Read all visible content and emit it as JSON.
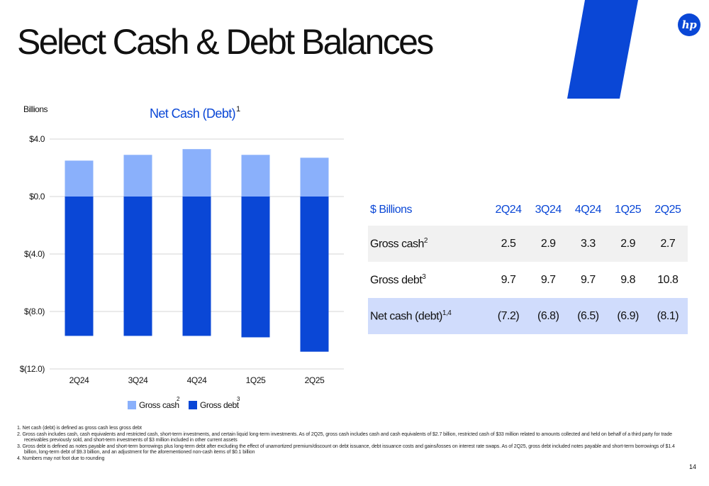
{
  "page": {
    "title": "Select Cash & Debt Balances",
    "logo_text": "hp",
    "page_number": "14",
    "colors": {
      "accent": "#0a47d6",
      "light_blue": "#8ab0fb",
      "dark_blue": "#0a47d6",
      "net_row_bg": "#d0dcfc"
    }
  },
  "chart_data": {
    "type": "bar",
    "title": "Net Cash (Debt)",
    "title_sup": "1",
    "ylabel": "Billions",
    "categories": [
      "2Q24",
      "3Q24",
      "4Q24",
      "1Q25",
      "2Q25"
    ],
    "series": [
      {
        "name": "Gross cash",
        "sup": "2",
        "values": [
          2.5,
          2.9,
          3.3,
          2.9,
          2.7
        ],
        "color": "#8ab0fb"
      },
      {
        "name": "Gross debt",
        "sup": "3",
        "values": [
          -9.7,
          -9.7,
          -9.7,
          -9.8,
          -10.8
        ],
        "color": "#0a47d6"
      }
    ],
    "ylim": [
      -12,
      4
    ],
    "yticks": [
      4,
      0,
      -4,
      -8,
      -12
    ],
    "ytick_labels": [
      "$4.0",
      "$0.0",
      "$(4.0)",
      "$(8.0)",
      "$(12.0)"
    ],
    "stacked": true,
    "grid": true,
    "legend_position": "bottom"
  },
  "table": {
    "headers": [
      "$ Billions",
      "2Q24",
      "3Q24",
      "4Q24",
      "1Q25",
      "2Q25"
    ],
    "rows": [
      {
        "label": "Gross cash",
        "sup": "2",
        "values": [
          "2.5",
          "2.9",
          "3.3",
          "2.9",
          "2.7"
        ]
      },
      {
        "label": "Gross debt",
        "sup": "3",
        "values": [
          "9.7",
          "9.7",
          "9.7",
          "9.8",
          "10.8"
        ]
      },
      {
        "label": "Net cash (debt)",
        "sup": "1,4",
        "values": [
          "(7.2)",
          "(6.8)",
          "(6.5)",
          "(6.9)",
          "(8.1)"
        ]
      }
    ]
  },
  "footnotes": [
    "1.  Net cash (debt) is defined as gross cash less gross debt",
    "2.  Gross cash includes cash, cash equivalents and restricted cash, short-term investments, and certain liquid long-term investments. As of 2Q25, gross cash includes cash and cash equivalents of $2.7 billion, restricted cash of $33 million related to amounts collected and held on behalf of a third party for trade receivables previously sold, and short-term investments of $3 million included in other current assets",
    "3.  Gross debt is defined as notes payable and short-term borrowings plus long-term debt after excluding the effect of unamortized premium/discount on debt issuance, debt issuance costs and gains/losses on interest rate swaps.  As of 2Q25, gross debt included notes payable and short-term borrowings of $1.4 billion, long-term debt of $9.3 billion, and an adjustment for the aforementioned non-cash items of $0.1 billion",
    "4.  Numbers may not foot due to rounding"
  ]
}
